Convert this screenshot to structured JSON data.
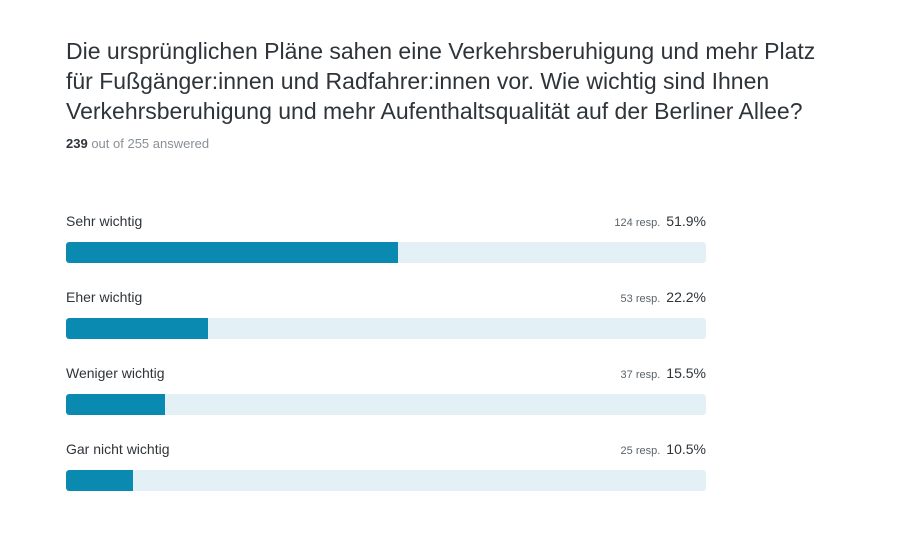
{
  "question": {
    "title": "Die ursprünglichen Pläne sahen eine Verkehrsberuhigung und mehr Platz für Fußgänger:innen und Radfahrer:innen vor. Wie wichtig sind Ihnen Verkehrsberuhigung und mehr Aufenthaltsqualität auf der Berliner Allee?",
    "answered_count": "239",
    "answered_suffix": "out of 255 answered"
  },
  "colors": {
    "bar_fill": "#0a89b1",
    "bar_track": "#e3f1f6"
  },
  "chart_data": {
    "type": "bar",
    "orientation": "horizontal",
    "categories": [
      "Sehr wichtig",
      "Eher wichtig",
      "Weniger wichtig",
      "Gar nicht wichtig"
    ],
    "values": [
      51.9,
      22.2,
      15.5,
      10.5
    ],
    "responses": [
      "124 resp.",
      "53 resp.",
      "37 resp.",
      "25 resp."
    ],
    "percent_labels": [
      "51.9%",
      "22.2%",
      "15.5%",
      "10.5%"
    ],
    "xlim": [
      0,
      100
    ]
  }
}
